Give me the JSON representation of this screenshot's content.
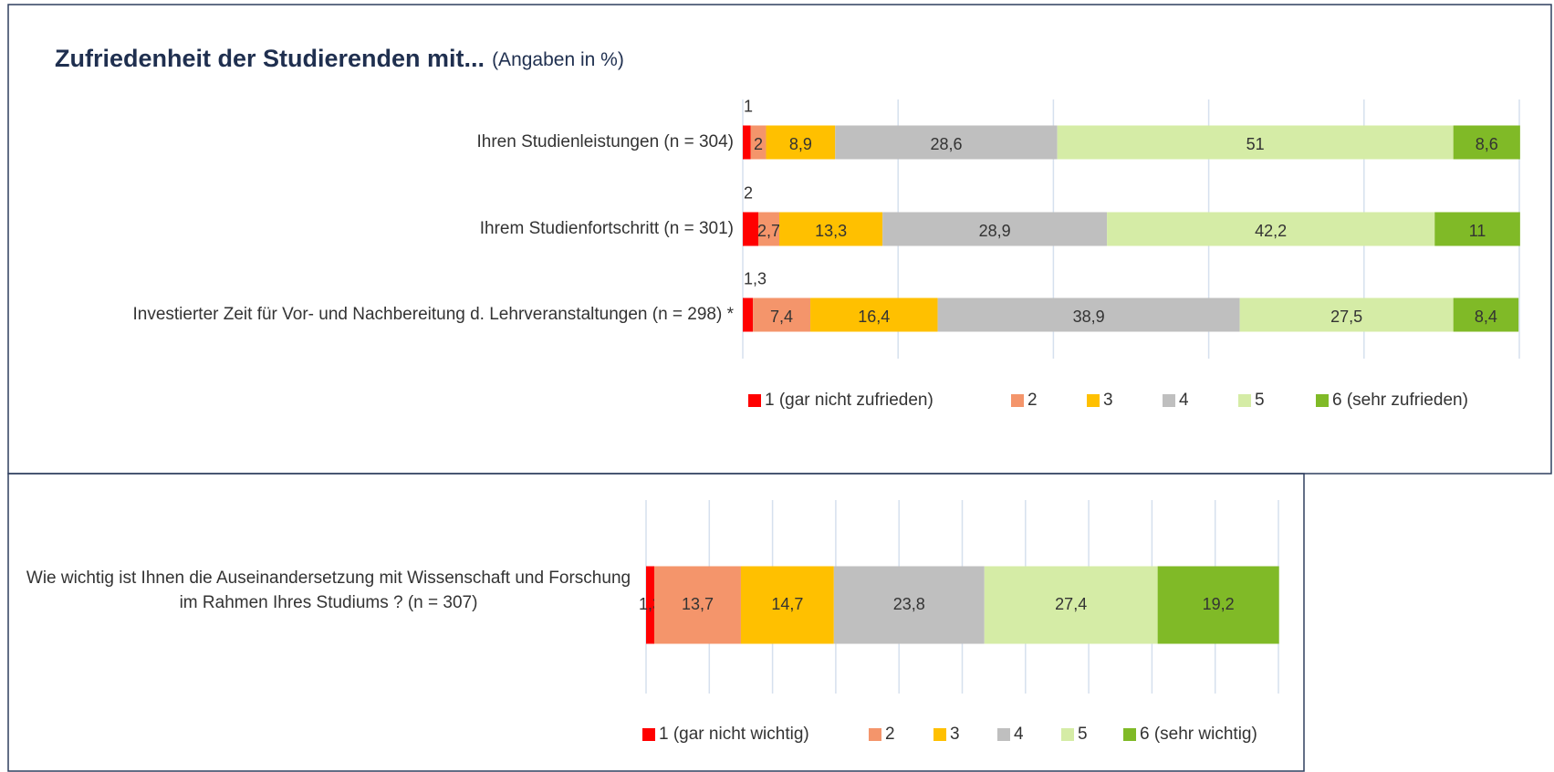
{
  "chart_data": [
    {
      "type": "stacked-bar-horizontal",
      "title": "Zufriedenheit der Studierenden mit...",
      "subtitle": "(Angaben in %)",
      "categories": [
        "Ihren Studienleistungen (n = 304)",
        "Ihrem Studienfortschritt (n = 301)",
        "Investierter Zeit für Vor- und Nachbereitung d. Lehrveranstaltungen (n = 298) *"
      ],
      "xlim": [
        0,
        100
      ],
      "xticks": [
        0,
        20,
        40,
        60,
        80,
        100
      ],
      "grid": true,
      "series": [
        {
          "name": "1 (gar nicht zufrieden)",
          "color": "#ff0000",
          "values": [
            1,
            2,
            1.3
          ],
          "value_labels": [
            "1",
            "2",
            "1,3"
          ]
        },
        {
          "name": "2",
          "color": "#f4956b",
          "values": [
            2,
            2.7,
            7.4
          ],
          "value_labels": [
            "2",
            "2,7",
            "7,4"
          ]
        },
        {
          "name": "3",
          "color": "#ffc000",
          "values": [
            8.9,
            13.3,
            16.4
          ],
          "value_labels": [
            "8,9",
            "13,3",
            "16,4"
          ]
        },
        {
          "name": "4",
          "color": "#bfbfbf",
          "values": [
            28.6,
            28.9,
            38.9
          ],
          "value_labels": [
            "28,6",
            "28,9",
            "38,9"
          ]
        },
        {
          "name": "5",
          "color": "#d5eca6",
          "values": [
            51,
            42.2,
            27.5
          ],
          "value_labels": [
            "51",
            "42,2",
            "27,5"
          ]
        },
        {
          "name": "6 (sehr zufrieden)",
          "color": "#80ba27",
          "values": [
            8.6,
            11,
            8.4
          ],
          "value_labels": [
            "8,6",
            "11",
            "8,4"
          ]
        }
      ]
    },
    {
      "type": "stacked-bar-horizontal",
      "categories": [
        "Wie wichtig ist Ihnen die Auseinandersetzung mit Wissenschaft und Forschung im Rahmen Ihres Studiums ? (n = 307)"
      ],
      "xlim": [
        0,
        100
      ],
      "xticks": [
        0,
        10,
        20,
        30,
        40,
        50,
        60,
        70,
        80,
        90,
        100
      ],
      "grid": true,
      "series": [
        {
          "name": "1 (gar nicht wichtig)",
          "color": "#ff0000",
          "values": [
            1.3
          ],
          "value_labels": [
            "1,3"
          ]
        },
        {
          "name": "2",
          "color": "#f4956b",
          "values": [
            13.7
          ],
          "value_labels": [
            "13,7"
          ]
        },
        {
          "name": "3",
          "color": "#ffc000",
          "values": [
            14.7
          ],
          "value_labels": [
            "14,7"
          ]
        },
        {
          "name": "4",
          "color": "#bfbfbf",
          "values": [
            23.8
          ],
          "value_labels": [
            "23,8"
          ]
        },
        {
          "name": "5",
          "color": "#d5eca6",
          "values": [
            27.4
          ],
          "value_labels": [
            "27,4"
          ]
        },
        {
          "name": "6 (sehr wichtig)",
          "color": "#80ba27",
          "values": [
            19.2
          ],
          "value_labels": [
            "19,2"
          ]
        }
      ]
    }
  ]
}
